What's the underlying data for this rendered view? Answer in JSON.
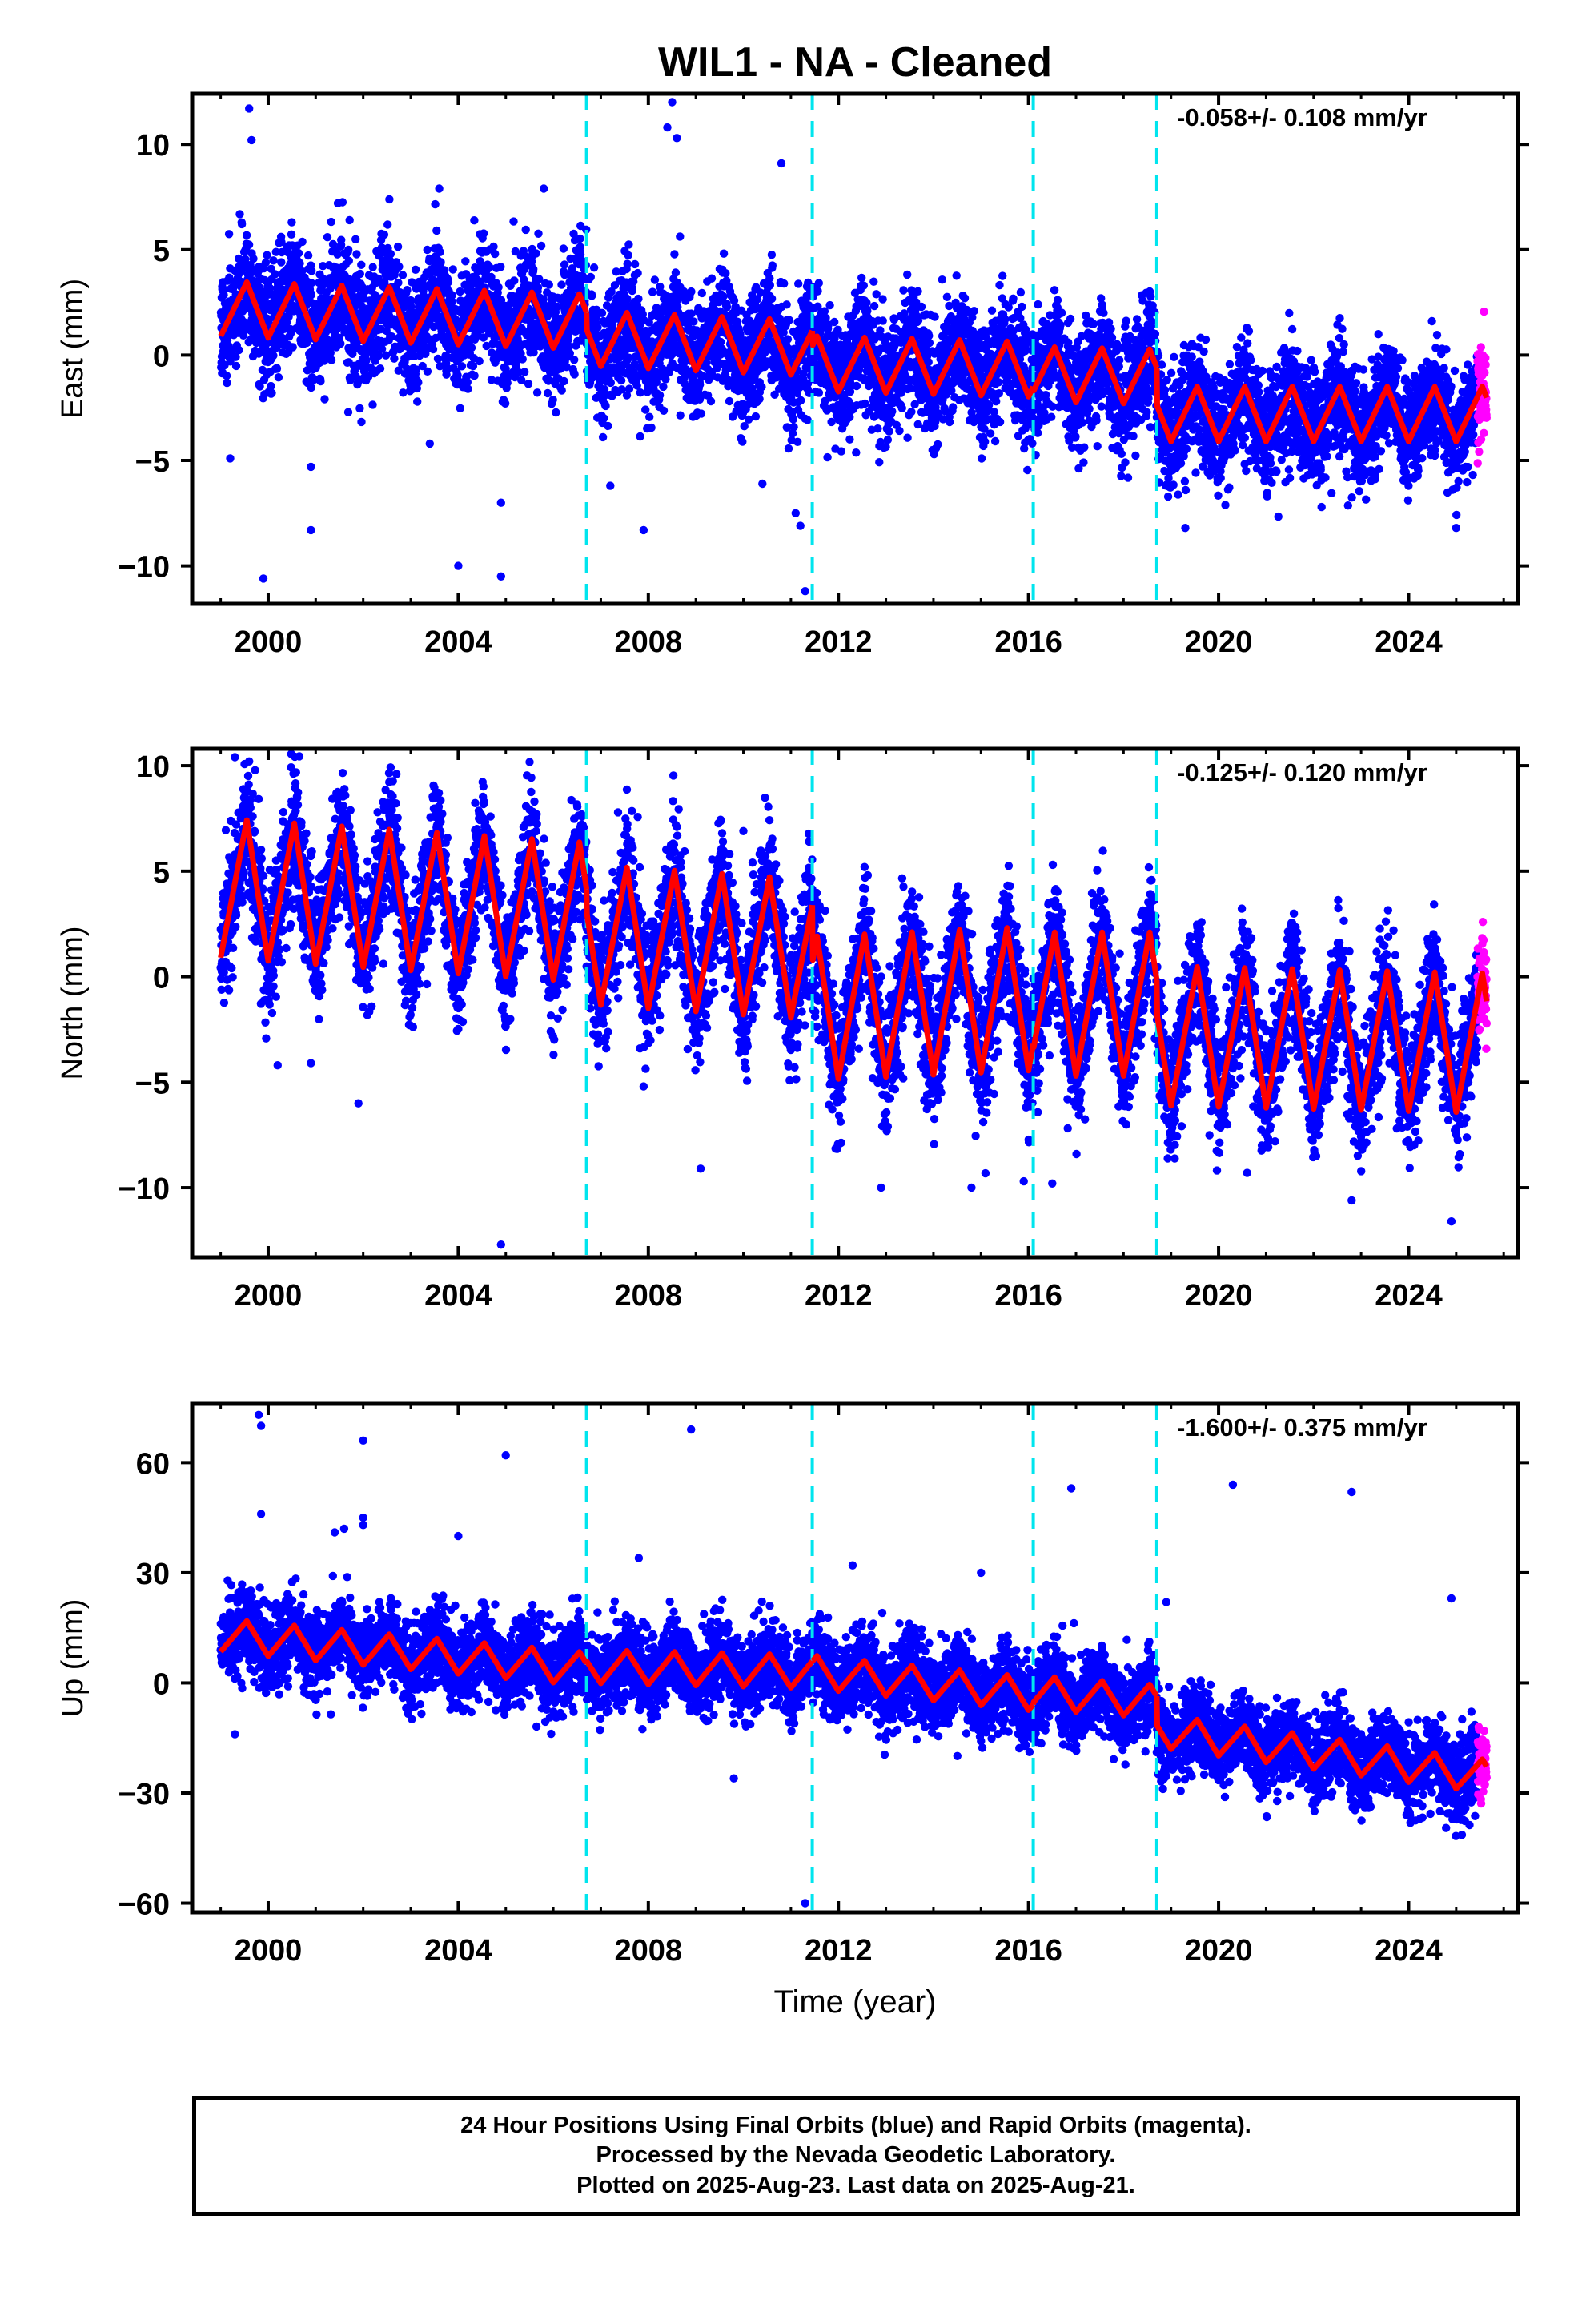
{
  "title": "WIL1  - NA - Cleaned",
  "x_axis_label": "Time (year)",
  "footer": {
    "line1": "24 Hour Positions Using Final Orbits (blue) and Rapid Orbits (magenta).",
    "line2": "Processed by the Nevada Geodetic Laboratory.",
    "line3": "Plotted on 2025-Aug-23. Last data on 2025-Aug-21."
  },
  "colors": {
    "final_orbits": "#0000ff",
    "rapid_orbits": "#ff00ff",
    "model": "#ff0000",
    "equipment_change": "#00e5ee"
  },
  "chart_data": [
    {
      "type": "scatter",
      "panel": "east",
      "ylabel": "East (mm)",
      "rate_label": "-0.058+/- 0.108 mm/yr",
      "xlim": [
        1998.4,
        2026.3
      ],
      "ylim": [
        -11.8,
        12.4
      ],
      "xticks": [
        2000,
        2004,
        2008,
        2012,
        2016,
        2020,
        2024
      ],
      "yticks": [
        10,
        5,
        0,
        -5,
        -10
      ],
      "ytick_labels": [
        "10",
        "5",
        "0",
        "−5",
        "−10"
      ],
      "data_start": 1999.0,
      "data_end": 2025.64,
      "rapid_start": 2025.45,
      "offset_epochs": [
        2006.7,
        2011.45,
        2016.1,
        2018.7
      ],
      "model_segments": [
        {
          "from": 1999.0,
          "to": 2006.7,
          "level_at_start": 2.2,
          "slope": -0.08,
          "amplitude": 1.3
        },
        {
          "from": 2006.7,
          "to": 2011.45,
          "level_at_start": 0.8,
          "slope": -0.1,
          "amplitude": 1.3
        },
        {
          "from": 2011.45,
          "to": 2016.1,
          "level_at_start": -0.4,
          "slope": -0.06,
          "amplitude": 1.3
        },
        {
          "from": 2016.1,
          "to": 2018.7,
          "level_at_start": -0.9,
          "slope": -0.05,
          "amplitude": 1.3
        },
        {
          "from": 2018.7,
          "to": 2025.64,
          "level_at_start": -2.8,
          "slope": 0.0,
          "amplitude": 1.3
        }
      ],
      "scatter_std": 1.35,
      "outliers": [
        [
          1999.6,
          11.7
        ],
        [
          1999.65,
          10.2
        ],
        [
          2008.5,
          12.0
        ],
        [
          2008.6,
          10.3
        ],
        [
          2008.4,
          10.8
        ],
        [
          2010.8,
          9.1
        ],
        [
          2005.8,
          7.9
        ],
        [
          2003.6,
          7.9
        ],
        [
          1999.2,
          -4.9
        ],
        [
          1999.9,
          -10.6
        ],
        [
          2004.0,
          -10.0
        ],
        [
          2004.9,
          -10.5
        ],
        [
          2004.9,
          -7.0
        ],
        [
          2000.9,
          -8.3
        ],
        [
          2007.9,
          -8.3
        ],
        [
          2011.3,
          -11.2
        ],
        [
          2011.2,
          -8.1
        ],
        [
          2011.1,
          -7.5
        ],
        [
          2007.2,
          -6.2
        ],
        [
          2010.4,
          -6.1
        ],
        [
          2019.3,
          -8.2
        ],
        [
          2025.0,
          -8.2
        ],
        [
          2000.9,
          -5.3
        ],
        [
          2003.4,
          -4.2
        ]
      ]
    },
    {
      "type": "scatter",
      "panel": "north",
      "ylabel": "North (mm)",
      "rate_label": "-0.125+/- 0.120 mm/yr",
      "xlim": [
        1998.4,
        2026.3
      ],
      "ylim": [
        -13.3,
        10.8
      ],
      "xticks": [
        2000,
        2004,
        2008,
        2012,
        2016,
        2020,
        2024
      ],
      "yticks": [
        10,
        5,
        0,
        -5,
        -10
      ],
      "ytick_labels": [
        "10",
        "5",
        "0",
        "−5",
        "−10"
      ],
      "data_start": 1999.0,
      "data_end": 2025.64,
      "rapid_start": 2025.45,
      "offset_epochs": [
        2006.7,
        2011.45,
        2016.1,
        2018.7
      ],
      "model_segments": [
        {
          "from": 1999.0,
          "to": 2006.7,
          "level_at_start": 4.2,
          "slope": -0.15,
          "amplitude": 3.3
        },
        {
          "from": 2006.7,
          "to": 2011.45,
          "level_at_start": 2.0,
          "slope": -0.15,
          "amplitude": 3.3
        },
        {
          "from": 2011.45,
          "to": 2016.1,
          "level_at_start": -1.5,
          "slope": 0.1,
          "amplitude": 3.4
        },
        {
          "from": 2016.1,
          "to": 2018.7,
          "level_at_start": -1.3,
          "slope": 0.0,
          "amplitude": 3.4
        },
        {
          "from": 2018.7,
          "to": 2025.64,
          "level_at_start": -2.8,
          "slope": -0.05,
          "amplitude": 3.3
        }
      ],
      "scatter_std": 1.5,
      "outliers": [
        [
          1999.3,
          10.4
        ],
        [
          1999.6,
          10.2
        ],
        [
          2002.7,
          9.6
        ],
        [
          2000.2,
          -4.2
        ],
        [
          2000.9,
          -4.1
        ],
        [
          2001.9,
          -6.0
        ],
        [
          2004.9,
          -12.7
        ],
        [
          2007.9,
          -5.2
        ],
        [
          2009.1,
          -9.1
        ],
        [
          2012.9,
          -10.0
        ],
        [
          2014.8,
          -10.0
        ],
        [
          2015.9,
          -9.7
        ],
        [
          2016.5,
          -9.8
        ],
        [
          2020.6,
          -9.3
        ],
        [
          2022.8,
          -10.6
        ],
        [
          2024.9,
          -11.6
        ],
        [
          2010.0,
          6.9
        ],
        [
          2008.6,
          7.1
        ]
      ]
    },
    {
      "type": "scatter",
      "panel": "up",
      "ylabel": "Up (mm)",
      "rate_label": "-1.600+/- 0.375 mm/yr",
      "xlim": [
        1998.4,
        2026.3
      ],
      "ylim": [
        -62.5,
        76.0
      ],
      "xticks": [
        2000,
        2004,
        2008,
        2012,
        2016,
        2020,
        2024
      ],
      "yticks": [
        60,
        30,
        0,
        -30,
        -60
      ],
      "ytick_labels": [
        "60",
        "30",
        "0",
        "−30",
        "−60"
      ],
      "data_start": 1999.0,
      "data_end": 2025.64,
      "rapid_start": 2025.45,
      "offset_epochs": [
        2006.7,
        2011.45,
        2016.1,
        2018.7
      ],
      "model_segments": [
        {
          "from": 1999.0,
          "to": 2006.7,
          "level_at_start": 13.0,
          "slope": -1.2,
          "amplitude": 4.5
        },
        {
          "from": 2006.7,
          "to": 2011.45,
          "level_at_start": 4.5,
          "slope": -0.3,
          "amplitude": 4.5
        },
        {
          "from": 2011.45,
          "to": 2016.1,
          "level_at_start": 3.0,
          "slope": -1.3,
          "amplitude": 4.5
        },
        {
          "from": 2016.1,
          "to": 2018.7,
          "level_at_start": -2.5,
          "slope": -1.0,
          "amplitude": 4.5
        },
        {
          "from": 2018.7,
          "to": 2025.64,
          "level_at_start": -13.0,
          "slope": -1.8,
          "amplitude": 4.5
        }
      ],
      "scatter_std": 5.5,
      "outliers": [
        [
          1999.8,
          73.0
        ],
        [
          1999.85,
          70.0
        ],
        [
          1999.85,
          46.0
        ],
        [
          2001.6,
          42.0
        ],
        [
          2001.4,
          41.0
        ],
        [
          2002.0,
          66.0
        ],
        [
          2002.0,
          45.0
        ],
        [
          2002.0,
          43.0
        ],
        [
          2004.0,
          40.0
        ],
        [
          2005.0,
          62.0
        ],
        [
          2008.9,
          69.0
        ],
        [
          2016.9,
          53.0
        ],
        [
          2020.3,
          54.0
        ],
        [
          2022.8,
          52.0
        ],
        [
          2024.9,
          23.0
        ],
        [
          2018.9,
          22.0
        ],
        [
          2011.3,
          -60.0
        ],
        [
          2009.8,
          -26.0
        ],
        [
          2007.8,
          34.0
        ],
        [
          2012.3,
          32.0
        ],
        [
          2015.0,
          30.0
        ],
        [
          1999.3,
          -14.0
        ]
      ]
    }
  ]
}
